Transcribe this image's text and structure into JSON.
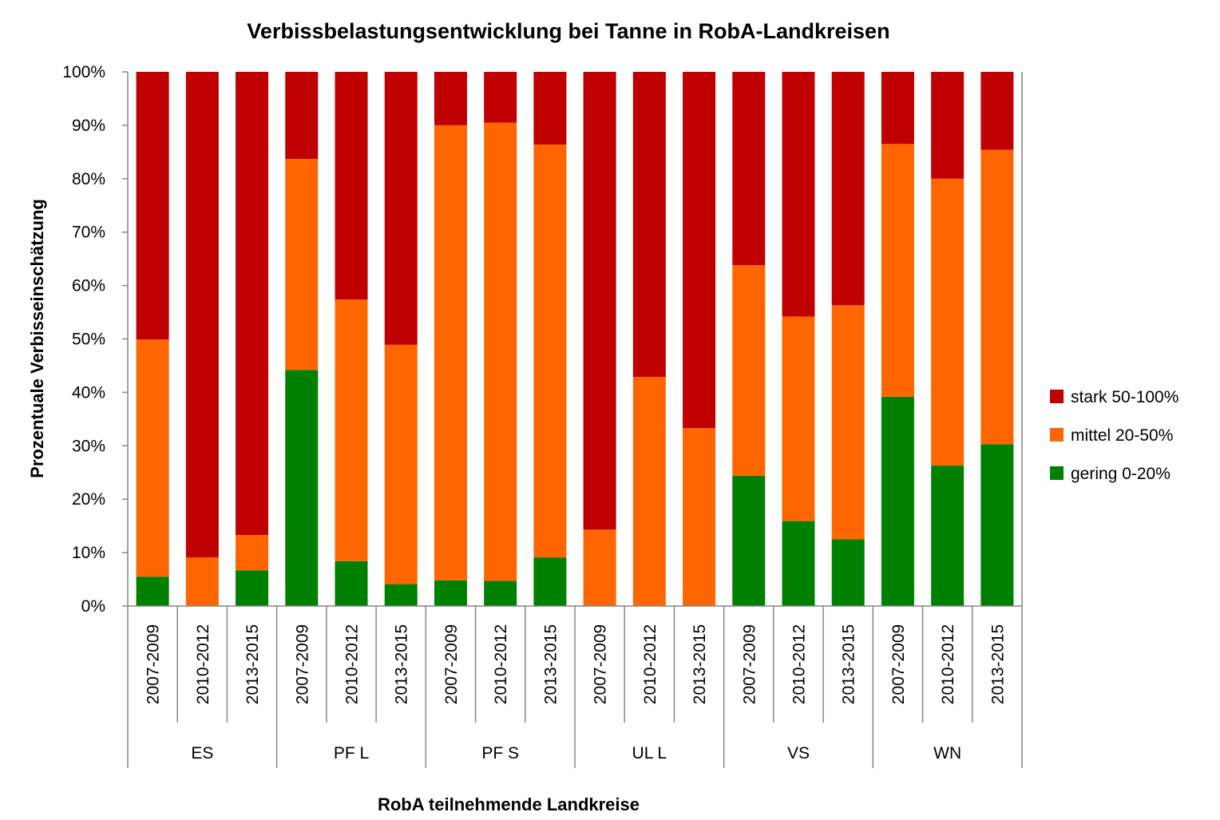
{
  "chart_data": {
    "type": "bar",
    "stacked": true,
    "percent_stacked": true,
    "title": "Verbissbelastungsentwicklung bei Tanne in RobA-Landkreisen",
    "xlabel": "RobA teilnehmende Landkreise",
    "ylabel": "Prozentuale Verbisseinschätzung",
    "ylim": [
      0,
      100
    ],
    "y_ticks": [
      "0%",
      "10%",
      "20%",
      "30%",
      "40%",
      "50%",
      "60%",
      "70%",
      "80%",
      "90%",
      "100%"
    ],
    "grid": false,
    "legend_position": "right",
    "groups": [
      {
        "name": "ES",
        "periods": [
          "2007-2009",
          "2010-2012",
          "2013-2015"
        ]
      },
      {
        "name": "PF L",
        "periods": [
          "2007-2009",
          "2010-2012",
          "2013-2015"
        ]
      },
      {
        "name": "PF S",
        "periods": [
          "2007-2009",
          "2010-2012",
          "2013-2015"
        ]
      },
      {
        "name": "UL L",
        "periods": [
          "2007-2009",
          "2010-2012",
          "2013-2015"
        ]
      },
      {
        "name": "VS",
        "periods": [
          "2007-2009",
          "2010-2012",
          "2013-2015"
        ]
      },
      {
        "name": "WN",
        "periods": [
          "2007-2009",
          "2010-2012",
          "2013-2015"
        ]
      }
    ],
    "series": [
      {
        "name": "gering 0-20%",
        "color": "#008000",
        "values": [
          5.5,
          0,
          6.7,
          44.2,
          8.4,
          4.1,
          4.8,
          4.7,
          9.1,
          0,
          0,
          0,
          24.4,
          15.9,
          12.5,
          39.2,
          26.3,
          30.3
        ]
      },
      {
        "name": "mittel 20-50%",
        "color": "#FF6600",
        "values": [
          44.4,
          9.1,
          6.6,
          39.5,
          49.0,
          44.8,
          85.2,
          85.8,
          77.3,
          14.3,
          42.9,
          33.3,
          39.4,
          38.3,
          43.8,
          47.3,
          53.7,
          55.1
        ]
      },
      {
        "name": "stark 50-100%",
        "color": "#C00000",
        "values": [
          50.1,
          90.9,
          86.7,
          16.3,
          42.6,
          51.1,
          10.0,
          9.5,
          13.6,
          85.7,
          57.1,
          66.7,
          36.2,
          45.8,
          43.7,
          13.5,
          20.0,
          14.6
        ]
      }
    ],
    "legend_order": [
      "stark 50-100%",
      "mittel 20-50%",
      "gering 0-20%"
    ]
  }
}
